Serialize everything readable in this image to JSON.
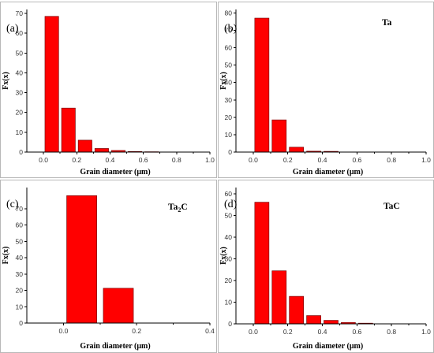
{
  "chart_data": [
    {
      "type": "bar",
      "panel_label": "(a)",
      "series_label": "",
      "xlabel": "Grain diameter (μm)",
      "ylabel": "Fx(x)",
      "xlim": [
        -0.1,
        1.0
      ],
      "ylim": [
        0,
        72
      ],
      "xticks": [
        "0.0",
        "0.2",
        "0.4",
        "0.6",
        "0.8",
        "1.0"
      ],
      "yticks": [
        "0",
        "10",
        "20",
        "30",
        "40",
        "50",
        "60",
        "70"
      ],
      "bin_width": 0.1,
      "bars": [
        {
          "x": 0.05,
          "value": 68.5
        },
        {
          "x": 0.15,
          "value": 22.2
        },
        {
          "x": 0.25,
          "value": 6.0
        },
        {
          "x": 0.35,
          "value": 1.8
        },
        {
          "x": 0.45,
          "value": 0.8
        },
        {
          "x": 0.55,
          "value": 0.3
        },
        {
          "x": 0.65,
          "value": 0.15
        }
      ]
    },
    {
      "type": "bar",
      "panel_label": "(b)",
      "series_label": "Ta",
      "xlabel": "Grain diameter (μm)",
      "ylabel": "Fx(x)",
      "xlim": [
        -0.1,
        1.0
      ],
      "ylim": [
        0,
        82
      ],
      "xticks": [
        "0.0",
        "0.2",
        "0.4",
        "0.6",
        "0.8",
        "1.0"
      ],
      "yticks": [
        "0",
        "10",
        "20",
        "30",
        "40",
        "50",
        "60",
        "70",
        "80"
      ],
      "bin_width": 0.1,
      "bars": [
        {
          "x": 0.05,
          "value": 77.0
        },
        {
          "x": 0.15,
          "value": 18.5
        },
        {
          "x": 0.25,
          "value": 2.8
        },
        {
          "x": 0.35,
          "value": 0.5
        },
        {
          "x": 0.45,
          "value": 0.4
        }
      ]
    },
    {
      "type": "bar",
      "panel_label": "(c)",
      "series_label": "Ta2C",
      "series_label_parts": {
        "base": "Ta",
        "sub": "2",
        "tail": "C"
      },
      "xlabel": "Grain diameter (μm)",
      "ylabel": "Fx(x)",
      "xlim": [
        -0.1,
        0.4
      ],
      "ylim": [
        0,
        83
      ],
      "xticks": [
        "0.0",
        "0.2",
        "0.4"
      ],
      "yticks": [
        "0",
        "10",
        "20",
        "30",
        "40",
        "50",
        "60",
        "70"
      ],
      "bin_width": 0.1,
      "bars": [
        {
          "x": 0.05,
          "value": 78.0
        },
        {
          "x": 0.15,
          "value": 21.3
        }
      ]
    },
    {
      "type": "bar",
      "panel_label": "(d)",
      "series_label": "TaC",
      "xlabel": "Grain diameter (μm)",
      "ylabel": "Fx(x)",
      "xlim": [
        -0.1,
        1.0
      ],
      "ylim": [
        0,
        63
      ],
      "xticks": [
        "0.0",
        "0.2",
        "0.4",
        "0.6",
        "0.8",
        "1.0"
      ],
      "yticks": [
        "0",
        "10",
        "20",
        "30",
        "40",
        "50",
        "60"
      ],
      "bin_width": 0.1,
      "bars": [
        {
          "x": 0.05,
          "value": 56.2
        },
        {
          "x": 0.15,
          "value": 24.5
        },
        {
          "x": 0.25,
          "value": 12.7
        },
        {
          "x": 0.35,
          "value": 3.8
        },
        {
          "x": 0.45,
          "value": 1.6
        },
        {
          "x": 0.55,
          "value": 0.6
        },
        {
          "x": 0.65,
          "value": 0.3
        }
      ]
    }
  ],
  "style": {
    "bar_color": "#ff0000",
    "bar_edge": "#7a0000"
  }
}
